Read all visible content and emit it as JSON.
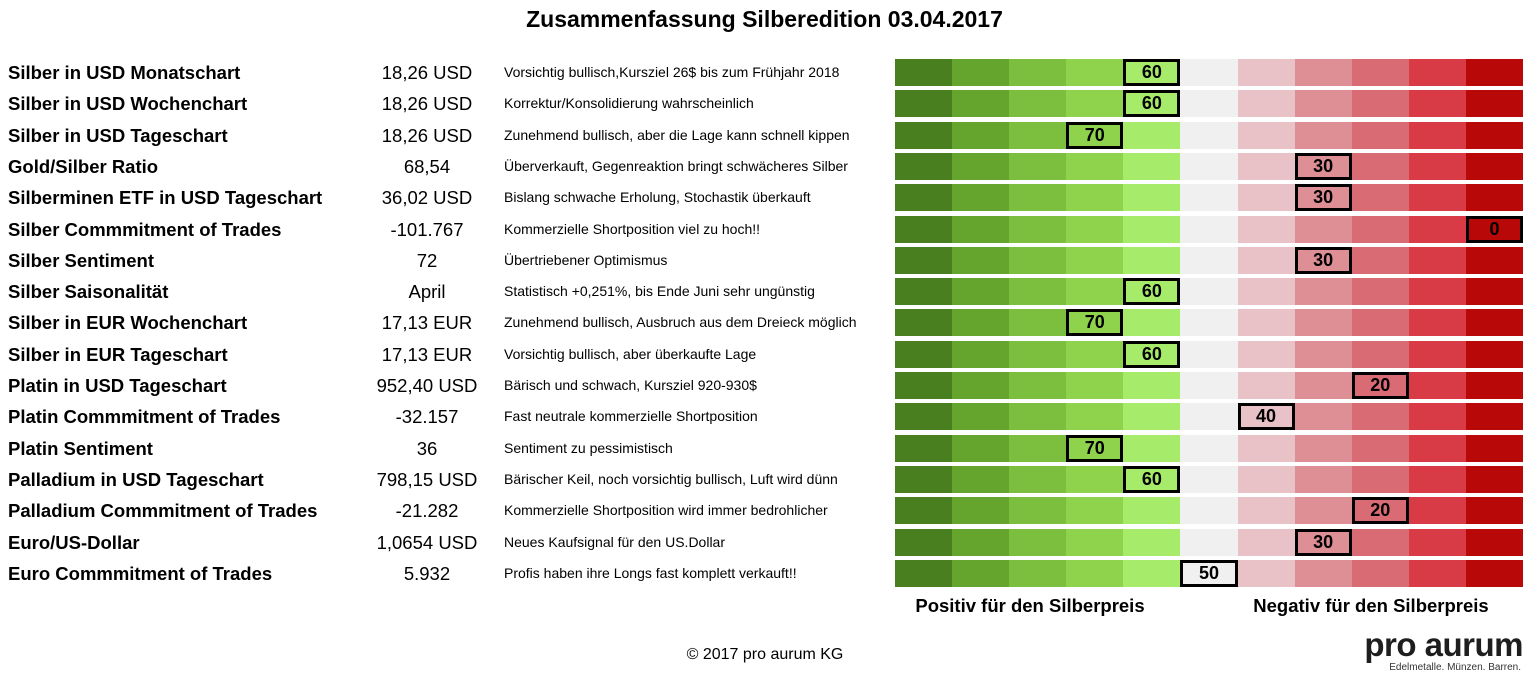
{
  "title": "Zusammenfassung Silberedition 03.04.2017",
  "chart_data": {
    "type": "table",
    "scale_max": 100,
    "scale_step": 10,
    "segment_colors": [
      "#4a7f1f",
      "#65a52e",
      "#7cbe3d",
      "#8fd24b",
      "#a6ec6a",
      "#f0f0f0",
      "#e8c2c6",
      "#de8e95",
      "#d96b74",
      "#d83a46",
      "#b80808"
    ],
    "rows": [
      {
        "label": "Silber in USD Monatschart",
        "value": "18,26 USD",
        "comment": "Vorsichtig bullisch,Kursziel 26$ bis zum Frühjahr 2018",
        "score": 60
      },
      {
        "label": "Silber in USD Wochenchart",
        "value": "18,26 USD",
        "comment": "Korrektur/Konsolidierung wahrscheinlich",
        "score": 60
      },
      {
        "label": "Silber in USD Tageschart",
        "value": "18,26 USD",
        "comment": "Zunehmend bullisch, aber die Lage kann schnell kippen",
        "score": 70
      },
      {
        "label": "Gold/Silber Ratio",
        "value": "68,54",
        "comment": "Überverkauft, Gegenreaktion bringt schwächeres Silber",
        "score": 30
      },
      {
        "label": "Silberminen ETF in USD Tageschart",
        "value": "36,02 USD",
        "comment": "Bislang schwache Erholung, Stochastik überkauft",
        "score": 30
      },
      {
        "label": "Silber Commmitment of Trades",
        "value": "-101.767",
        "comment": "Kommerzielle Shortposition viel zu hoch!!",
        "score": 0
      },
      {
        "label": "Silber Sentiment",
        "value": "72",
        "comment": "Übertriebener Optimismus",
        "score": 30
      },
      {
        "label": "Silber Saisonalität",
        "value": "April",
        "comment": "Statistisch +0,251%, bis Ende Juni sehr ungünstig",
        "score": 60
      },
      {
        "label": "Silber in EUR Wochenchart",
        "value": "17,13 EUR",
        "comment": "Zunehmend bullisch, Ausbruch aus dem Dreieck möglich",
        "score": 70
      },
      {
        "label": "Silber in EUR Tageschart",
        "value": "17,13 EUR",
        "comment": "Vorsichtig bullisch, aber überkaufte Lage",
        "score": 60
      },
      {
        "label": "Platin in USD Tageschart",
        "value": "952,40 USD",
        "comment": "Bärisch und schwach, Kursziel 920-930$",
        "score": 20
      },
      {
        "label": "Platin Commmitment of Trades",
        "value": "-32.157",
        "comment": "Fast neutrale kommerzielle Shortposition",
        "score": 40
      },
      {
        "label": "Platin Sentiment",
        "value": "36",
        "comment": "Sentiment zu pessimistisch",
        "score": 70
      },
      {
        "label": "Palladium in USD Tageschart",
        "value": "798,15 USD",
        "comment": "Bärischer Keil, noch vorsichtig bullisch, Luft wird dünn",
        "score": 60
      },
      {
        "label": "Palladium Commmitment of Trades",
        "value": "-21.282",
        "comment": "Kommerzielle Shortposition wird immer bedrohlicher",
        "score": 20
      },
      {
        "label": "Euro/US-Dollar",
        "value": "1,0654 USD",
        "comment": "Neues Kaufsignal für den US.Dollar",
        "score": 30
      },
      {
        "label": "Euro Commmitment of Trades",
        "value": "5.932",
        "comment": "Profis haben ihre Longs fast komplett verkauft!!",
        "score": 50
      }
    ],
    "axis_left_label": "Positiv für den Silberpreis",
    "axis_right_label": "Negativ für den Silberpreis"
  },
  "footer": {
    "copyright": "© 2017 pro aurum KG",
    "logo_text": "pro aurum",
    "logo_tagline": "Edelmetalle. Münzen. Barren."
  }
}
